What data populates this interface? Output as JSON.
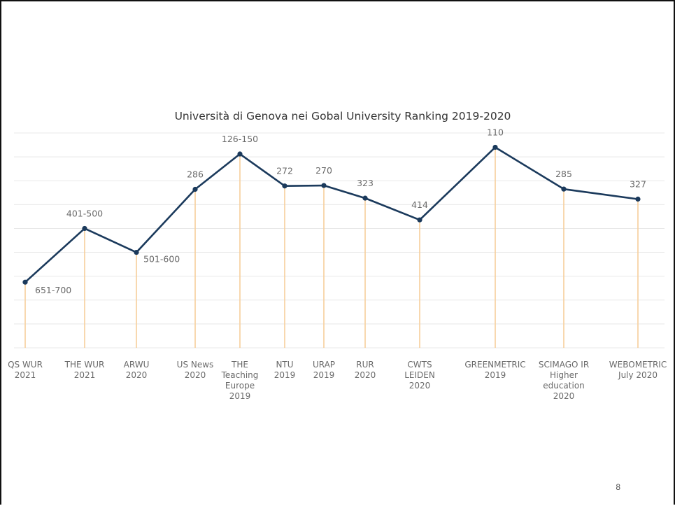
{
  "page_number": "8",
  "chart_data": {
    "type": "line",
    "title": "Università di Genova nei Gobal University Ranking 2019-2020",
    "categories": [
      [
        "QS WUR",
        "2021"
      ],
      [
        "THE WUR",
        "2021"
      ],
      [
        "ARWU",
        "2020"
      ],
      [
        "US News",
        "2020"
      ],
      [
        "THE",
        "Teaching",
        "Europe",
        "2019"
      ],
      [
        "NTU",
        "2019"
      ],
      [
        "URAP",
        "2019"
      ],
      [
        "RUR",
        "2020"
      ],
      [
        "CWTS",
        "LEIDEN",
        "2020"
      ],
      [
        "GREENMETRIC",
        "2019"
      ],
      [
        "SCIMAGO IR",
        "Higher",
        "education",
        "2020"
      ],
      [
        "WEBOMETRIC",
        "July 2020"
      ]
    ],
    "labels": [
      "651-700",
      "401-500",
      "501-600",
      "286",
      "126-150",
      "272",
      "270",
      "323",
      "414",
      "110",
      "285",
      "327"
    ],
    "values": [
      675,
      450,
      550,
      286,
      138,
      272,
      270,
      323,
      414,
      110,
      285,
      327
    ],
    "y_axis_inverted": true,
    "ylim": [
      50,
      950
    ],
    "grid": "horizontal",
    "colors": {
      "line": "#1b3a5c",
      "marker": "#1b3a5c",
      "drop_lines": "#f7cf9b",
      "grid": "#e8e8e8"
    }
  }
}
